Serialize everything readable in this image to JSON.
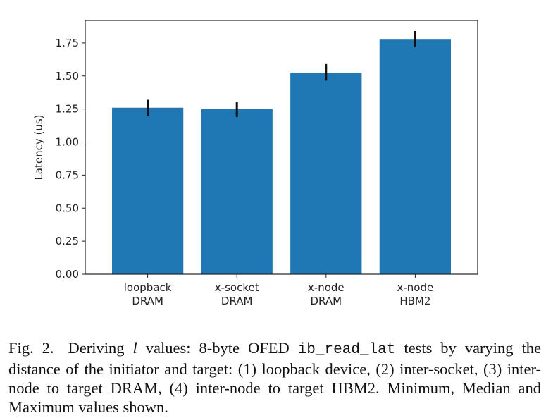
{
  "chart_data": {
    "type": "bar",
    "categories": [
      [
        "loopback",
        "DRAM"
      ],
      [
        "x-socket",
        "DRAM"
      ],
      [
        "x-node",
        "DRAM"
      ],
      [
        "x-node",
        "HBM2"
      ]
    ],
    "values": [
      1.26,
      1.25,
      1.525,
      1.775
    ],
    "error_min": [
      1.2,
      1.19,
      1.465,
      1.72
    ],
    "error_max": [
      1.32,
      1.305,
      1.59,
      1.84
    ],
    "ylabel": "Latency (us)",
    "ylim": [
      0,
      1.92
    ],
    "yticks": [
      "0.00",
      "0.25",
      "0.50",
      "0.75",
      "1.00",
      "1.25",
      "1.50",
      "1.75"
    ],
    "grid": false,
    "bar_color": "#1f77b4",
    "error_color": "#111111"
  },
  "caption": {
    "fig_label": "Fig. 2.",
    "text_1": "Deriving ",
    "symbol": "l",
    "text_2": " values: 8-byte OFED ",
    "code": "ib_read_lat",
    "text_3": " tests by varying the distance of the initiator and target: (1) loopback device, (2) inter-socket, (3) inter-node to target DRAM, (4) inter-node to target HBM2. Minimum, Median and Maximum values shown."
  }
}
